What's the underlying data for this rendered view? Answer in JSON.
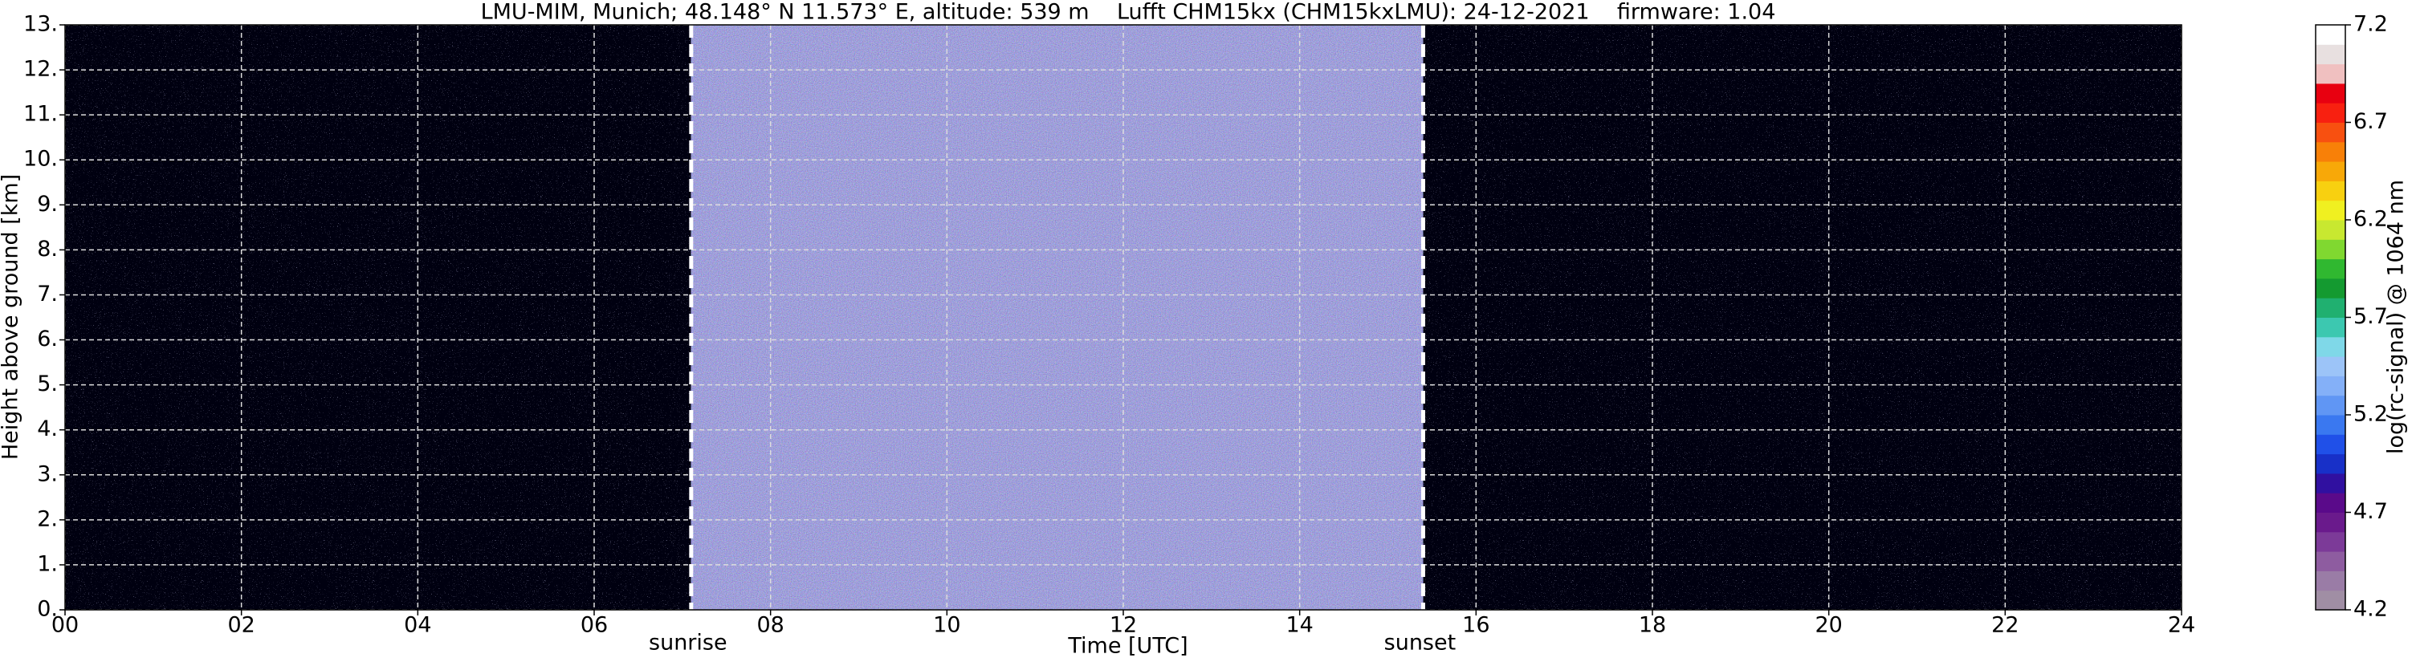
{
  "chart_data": {
    "type": "heatmap",
    "title": "LMU-MIM, Munich; 48.148° N 11.573° E, altitude: 539 m    Lufft CHM15kx (CHM15kxLMU): 24-12-2021    firmware: 1.04",
    "x_label": "Time [UTC]",
    "y_label": "Height above ground [km]",
    "xlim": [
      0,
      24
    ],
    "xticks": [
      {
        "value": 0,
        "label": "00"
      },
      {
        "value": 2,
        "label": "02"
      },
      {
        "value": 4,
        "label": "04"
      },
      {
        "value": 6,
        "label": "06"
      },
      {
        "value": 8,
        "label": "08"
      },
      {
        "value": 10,
        "label": "10"
      },
      {
        "value": 12,
        "label": "12"
      },
      {
        "value": 14,
        "label": "14"
      },
      {
        "value": 16,
        "label": "16"
      },
      {
        "value": 18,
        "label": "18"
      },
      {
        "value": 20,
        "label": "20"
      },
      {
        "value": 22,
        "label": "22"
      },
      {
        "value": 24,
        "label": "24"
      }
    ],
    "ylim": [
      0,
      13
    ],
    "yticks": [
      {
        "value": 0,
        "label": "0."
      },
      {
        "value": 1,
        "label": "1."
      },
      {
        "value": 2,
        "label": "2."
      },
      {
        "value": 3,
        "label": "3."
      },
      {
        "value": 4,
        "label": "4."
      },
      {
        "value": 5,
        "label": "5."
      },
      {
        "value": 6,
        "label": "6."
      },
      {
        "value": 7,
        "label": "7."
      },
      {
        "value": 8,
        "label": "8."
      },
      {
        "value": 9,
        "label": "9."
      },
      {
        "value": 10,
        "label": "10."
      },
      {
        "value": 11,
        "label": "11."
      },
      {
        "value": 12,
        "label": "12."
      },
      {
        "value": 13,
        "label": "13."
      }
    ],
    "grid": true,
    "annotations": [
      {
        "text": "sunrise",
        "x": 7.1
      },
      {
        "text": "sunset",
        "x": 15.4
      }
    ],
    "colorbar": {
      "label": "log(rc-signal) @ 1064 nm",
      "lim": [
        4.2,
        7.2
      ],
      "ticks": [
        4.2,
        4.7,
        5.2,
        5.7,
        6.2,
        6.7,
        7.2
      ],
      "colors": [
        "#a08ea4",
        "#9a7ca6",
        "#8e5ca0",
        "#7c3a98",
        "#6a1a8c",
        "#5a0a8a",
        "#3010a0",
        "#1830c8",
        "#2050e8",
        "#3a78f0",
        "#6096f4",
        "#84b0f8",
        "#9cc4f8",
        "#7fd8e8",
        "#3cc8b0",
        "#20b070",
        "#149a30",
        "#30b830",
        "#80d830",
        "#c8e830",
        "#f0f020",
        "#f8d010",
        "#f8a808",
        "#f88008",
        "#f85010",
        "#f82010",
        "#e80010",
        "#f0c0c0",
        "#e8e0e0",
        "#ffffff"
      ]
    }
  }
}
